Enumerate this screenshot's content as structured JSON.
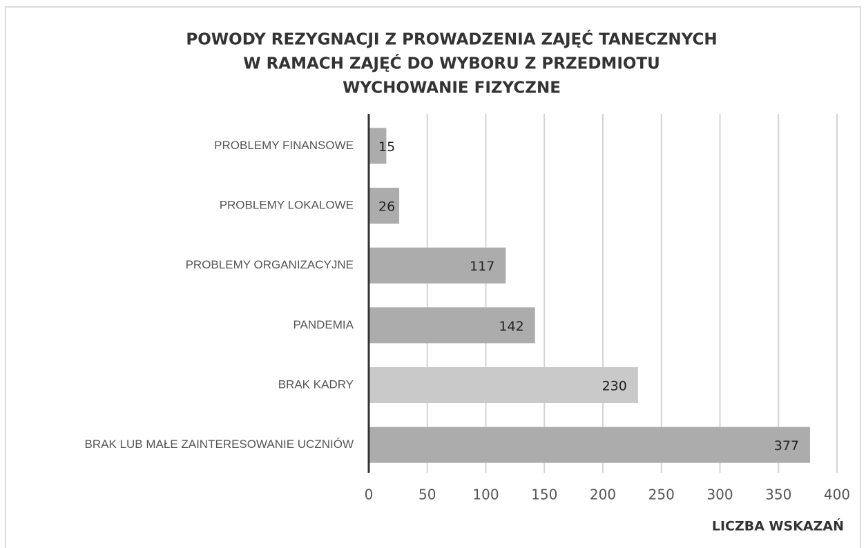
{
  "chart_data": {
    "type": "hbar",
    "title": [
      "POWODY REZYGNACJI Z PROWADZENIA ZAJĘĆ TANECZNYCH",
      "W RAMACH ZAJĘĆ DO WYBORU Z PRZEDMIOTU",
      "WYCHOWANIE FIZYCZNE"
    ],
    "x_label": "LICZBA WSKAZAŃ",
    "categories": [
      "PROBLEMY FINANSOWE",
      "PROBLEMY LOKALOWE",
      "PROBLEMY ORGANIZACYJNE",
      "PANDEMIA",
      "BRAK KADRY",
      "BRAK LUB MAŁE ZAINTERESOWANIE UCZNIÓW"
    ],
    "values": [
      15,
      26,
      117,
      142,
      230,
      377
    ],
    "colors": [
      "#acacac",
      "#acacac",
      "#acacac",
      "#acacac",
      "#c9c9c9",
      "#acacac"
    ],
    "xlim": [
      0,
      400
    ],
    "xticks": [
      0,
      50,
      100,
      150,
      200,
      250,
      300,
      350,
      400
    ],
    "grid": true
  }
}
